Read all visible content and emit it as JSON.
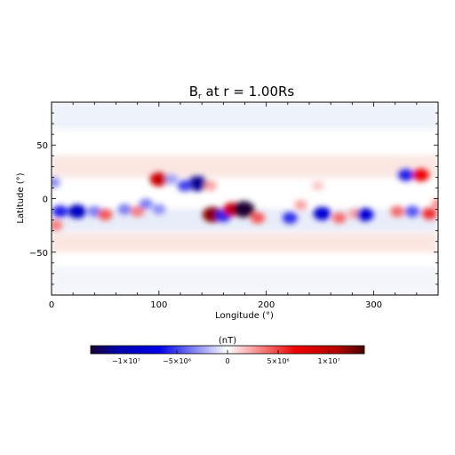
{
  "chart_data": {
    "type": "heatmap",
    "title": "B",
    "title_subscript": "r",
    "title_suffix": " at r = 1.00Rs",
    "xlabel": "Longitude (°)",
    "ylabel": "Latitude (°)",
    "xlim": [
      0,
      360
    ],
    "ylim": [
      -90,
      90
    ],
    "x_ticks": [
      {
        "value": 0,
        "label": "0"
      },
      {
        "value": 100,
        "label": "100"
      },
      {
        "value": 200,
        "label": "200"
      },
      {
        "value": 300,
        "label": "300"
      }
    ],
    "y_ticks": [
      {
        "value": 50,
        "label": "50"
      },
      {
        "value": 0,
        "label": "0"
      },
      {
        "value": -50,
        "label": "−50"
      }
    ],
    "colorbar": {
      "label": "(nT)",
      "range": [
        -13500000,
        13500000
      ],
      "colormap": [
        "#1a0033",
        "#0000d8",
        "#ffffff",
        "#e00000",
        "#5a0000"
      ],
      "ticks": [
        {
          "value": -10000000,
          "label": "−1×10⁷"
        },
        {
          "value": -5000000,
          "label": "−5×10⁶"
        },
        {
          "value": 0,
          "label": "0"
        },
        {
          "value": 5000000,
          "label": "5×10⁶"
        },
        {
          "value": 10000000,
          "label": "1×10⁷"
        }
      ]
    },
    "features": [
      {
        "lon": 100,
        "lat": 18,
        "value": 9500000
      },
      {
        "lon": 112,
        "lat": 18,
        "value": -2500000
      },
      {
        "lon": 136,
        "lat": 14,
        "value": -11500000
      },
      {
        "lon": 124,
        "lat": 12,
        "value": -5000000
      },
      {
        "lon": 148,
        "lat": 12,
        "value": 2500000
      },
      {
        "lon": 150,
        "lat": -15,
        "value": 12000000
      },
      {
        "lon": 160,
        "lat": -16,
        "value": -6000000
      },
      {
        "lon": 168,
        "lat": -10,
        "value": 9000000
      },
      {
        "lon": 179,
        "lat": -10,
        "value": -14000000
      },
      {
        "lon": 192,
        "lat": -18,
        "value": 4500000
      },
      {
        "lon": 88,
        "lat": -5,
        "value": -3500000
      },
      {
        "lon": 100,
        "lat": -10,
        "value": -3000000
      },
      {
        "lon": 8,
        "lat": -12,
        "value": -6000000
      },
      {
        "lon": 24,
        "lat": -12,
        "value": -9500000
      },
      {
        "lon": 40,
        "lat": -12,
        "value": -3500000
      },
      {
        "lon": 50,
        "lat": -15,
        "value": 4500000
      },
      {
        "lon": 68,
        "lat": -10,
        "value": -3500000
      },
      {
        "lon": 80,
        "lat": -12,
        "value": 3500000
      },
      {
        "lon": 2,
        "lat": 15,
        "value": -3000000
      },
      {
        "lon": 4,
        "lat": -25,
        "value": 3500000
      },
      {
        "lon": 222,
        "lat": -18,
        "value": -5500000
      },
      {
        "lon": 232,
        "lat": -6,
        "value": 2500000
      },
      {
        "lon": 252,
        "lat": -14,
        "value": -8500000
      },
      {
        "lon": 268,
        "lat": -18,
        "value": 4000000
      },
      {
        "lon": 282,
        "lat": -14,
        "value": 2500000
      },
      {
        "lon": 292,
        "lat": -15,
        "value": -8000000
      },
      {
        "lon": 248,
        "lat": 12,
        "value": 1500000
      },
      {
        "lon": 330,
        "lat": 22,
        "value": -6000000
      },
      {
        "lon": 344,
        "lat": 22,
        "value": 7000000
      },
      {
        "lon": 322,
        "lat": -12,
        "value": 4000000
      },
      {
        "lon": 336,
        "lat": -12,
        "value": -4500000
      },
      {
        "lon": 352,
        "lat": -14,
        "value": 5500000
      },
      {
        "lon": 360,
        "lat": -5,
        "value": 3000000
      }
    ]
  }
}
